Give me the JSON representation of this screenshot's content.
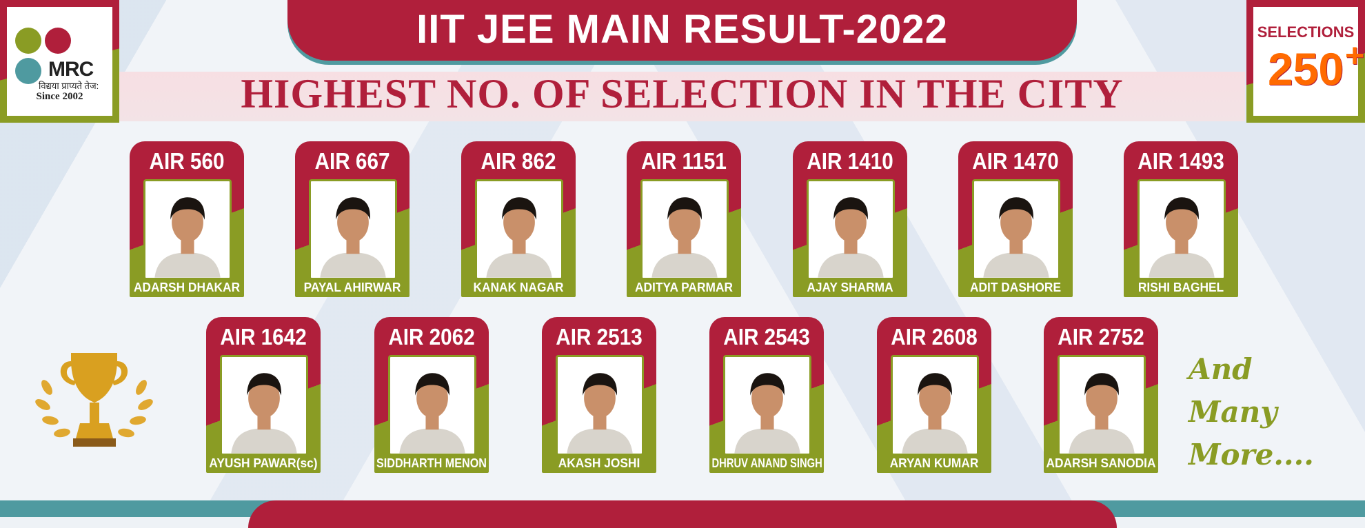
{
  "header": {
    "title": "IIT JEE MAIN RESULT-2022",
    "subtitle": "HIGHEST NO. OF SELECTION IN THE CITY"
  },
  "logo": {
    "brand": "MRC",
    "tagline": "विद्यया प्राप्यते तेज:",
    "since": "Since 2002"
  },
  "selections": {
    "label": "SELECTIONS",
    "count": "250",
    "plus": "+"
  },
  "colors": {
    "red": "#b01f3b",
    "green": "#8a9c24",
    "teal": "#4f9aa0",
    "orange": "#ff6a00"
  },
  "students": [
    {
      "rank": "AIR 560",
      "name": "ADARSH DHAKAR"
    },
    {
      "rank": "AIR 667",
      "name": "PAYAL AHIRWAR"
    },
    {
      "rank": "AIR 862",
      "name": "KANAK NAGAR"
    },
    {
      "rank": "AIR 1151",
      "name": "ADITYA PARMAR"
    },
    {
      "rank": "AIR 1410",
      "name": "AJAY SHARMA"
    },
    {
      "rank": "AIR 1470",
      "name": "ADIT DASHORE"
    },
    {
      "rank": "AIR 1493",
      "name": "RISHI BAGHEL"
    },
    {
      "rank": "AIR 1642",
      "name": "AYUSH PAWAR(sc)"
    },
    {
      "rank": "AIR 2062",
      "name": "SIDDHARTH MENON"
    },
    {
      "rank": "AIR 2513",
      "name": "AKASH JOSHI"
    },
    {
      "rank": "AIR 2543",
      "name": "DHRUV ANAND SINGH"
    },
    {
      "rank": "AIR 2608",
      "name": "ARYAN KUMAR"
    },
    {
      "rank": "AIR 2752",
      "name": "ADARSH SANODIA"
    }
  ],
  "more": {
    "line1": "And",
    "line2": "Many",
    "line3": "More...."
  }
}
